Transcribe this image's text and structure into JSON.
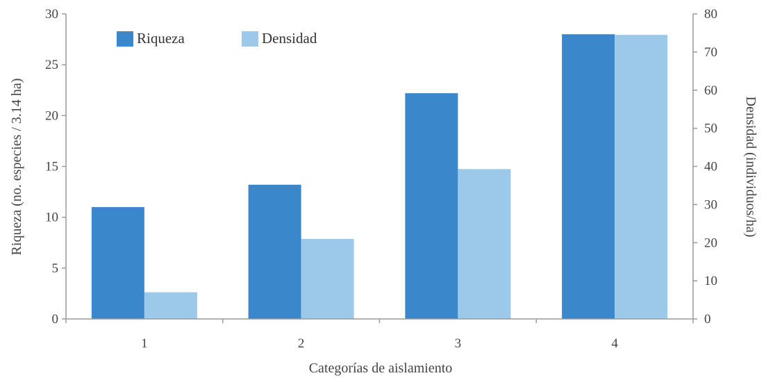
{
  "chart_data": {
    "type": "bar",
    "categories": [
      "1",
      "2",
      "3",
      "4"
    ],
    "series": [
      {
        "name": "Riqueza",
        "axis": "left",
        "values": [
          11,
          13.2,
          22.2,
          28
        ],
        "color": "#3a87cc"
      },
      {
        "name": "Densidad",
        "axis": "right",
        "values": [
          7,
          21,
          39.3,
          74.5
        ],
        "color": "#9cc9ea"
      }
    ],
    "xlabel": "Categorías de aislamiento",
    "ylabel_left": "Riqueza (no. especies / 3.14 ha)",
    "ylabel_right": "Densidad (individuos/ha)",
    "ylim_left": [
      0,
      30
    ],
    "ylim_right": [
      0,
      80
    ],
    "yticks_left": [
      "0",
      "5",
      "10",
      "15",
      "20",
      "25",
      "30"
    ],
    "yticks_right": [
      "0",
      "10",
      "20",
      "30",
      "40",
      "50",
      "60",
      "70",
      "80"
    ],
    "grid": false,
    "legend_position": "top-left"
  }
}
